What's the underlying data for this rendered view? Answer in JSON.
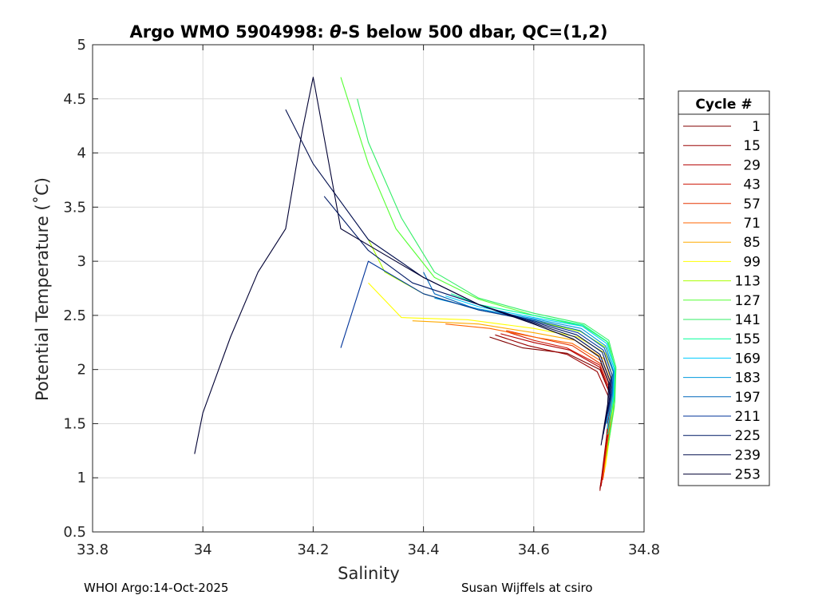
{
  "chart_data": {
    "type": "line",
    "title_prefix": "Argo WMO 5904998: ",
    "title_theta": "θ",
    "title_suffix": "-S below 500 dbar,  QC=(1,2)",
    "xlabel": "Salinity",
    "ylabel": "Potential Temperature (˚C)",
    "xlim": [
      33.8,
      34.8
    ],
    "ylim": [
      0.5,
      5
    ],
    "x_ticks": [
      33.8,
      34,
      34.2,
      34.4,
      34.6,
      34.8
    ],
    "x_tick_labels": [
      "33.8",
      "34",
      "34.2",
      "34.4",
      "34.6",
      "34.8"
    ],
    "y_ticks": [
      0.5,
      1,
      1.5,
      2,
      2.5,
      3,
      3.5,
      4,
      4.5,
      5
    ],
    "y_tick_labels": [
      "0.5",
      "1",
      "1.5",
      "2",
      "2.5",
      "3",
      "3.5",
      "4",
      "4.5",
      "5"
    ],
    "grid": true,
    "legend_title": "Cycle #",
    "legend_position": "right-outside",
    "series": [
      {
        "name": "1",
        "color": "#800000",
        "x": [
          34.72,
          34.735,
          34.74,
          34.72,
          34.66,
          34.58,
          34.52
        ],
        "y": [
          0.9,
          1.4,
          1.75,
          2.0,
          2.15,
          2.2,
          2.3
        ]
      },
      {
        "name": "15",
        "color": "#990000",
        "x": [
          34.72,
          34.732,
          34.738,
          34.715,
          34.66,
          34.59,
          34.53
        ],
        "y": [
          0.88,
          1.38,
          1.72,
          1.98,
          2.14,
          2.22,
          2.32
        ]
      },
      {
        "name": "29",
        "color": "#b30000",
        "x": [
          34.722,
          34.734,
          34.74,
          34.72,
          34.665,
          34.6,
          34.54
        ],
        "y": [
          0.92,
          1.4,
          1.76,
          2.02,
          2.18,
          2.25,
          2.33
        ]
      },
      {
        "name": "43",
        "color": "#cc1100",
        "x": [
          34.723,
          34.735,
          34.741,
          34.72,
          34.66,
          34.6,
          34.55
        ],
        "y": [
          0.95,
          1.42,
          1.78,
          2.04,
          2.2,
          2.27,
          2.35
        ]
      },
      {
        "name": "57",
        "color": "#e63300",
        "x": [
          34.725,
          34.737,
          34.742,
          34.722,
          34.67,
          34.61,
          34.55
        ],
        "y": [
          0.98,
          1.45,
          1.8,
          2.05,
          2.22,
          2.29,
          2.36
        ]
      },
      {
        "name": "71",
        "color": "#ff6600",
        "x": [
          34.726,
          34.738,
          34.743,
          34.725,
          34.67,
          34.6,
          34.52,
          34.44
        ],
        "y": [
          1.0,
          1.47,
          1.82,
          2.07,
          2.24,
          2.3,
          2.38,
          2.42
        ]
      },
      {
        "name": "85",
        "color": "#ffaa00",
        "x": [
          34.728,
          34.74,
          34.744,
          34.727,
          34.675,
          34.6,
          34.5,
          34.38
        ],
        "y": [
          1.05,
          1.5,
          1.85,
          2.1,
          2.27,
          2.34,
          2.42,
          2.45
        ]
      },
      {
        "name": "99",
        "color": "#ffff00",
        "x": [
          34.73,
          34.742,
          34.745,
          34.73,
          34.68,
          34.6,
          34.48,
          34.36,
          34.3
        ],
        "y": [
          1.1,
          1.55,
          1.9,
          2.15,
          2.3,
          2.38,
          2.46,
          2.48,
          2.8
        ]
      },
      {
        "name": "113",
        "color": "#aaff00",
        "x": [
          34.732,
          34.744,
          34.746,
          34.732,
          34.685,
          34.6,
          34.5,
          34.4,
          34.33,
          34.3
        ],
        "y": [
          1.2,
          1.6,
          1.95,
          2.2,
          2.35,
          2.45,
          2.55,
          2.7,
          2.9,
          3.2
        ]
      },
      {
        "name": "127",
        "color": "#55ff33",
        "x": [
          34.735,
          34.746,
          34.748,
          34.735,
          34.69,
          34.6,
          34.5,
          34.42,
          34.35,
          34.3,
          34.25
        ],
        "y": [
          1.3,
          1.65,
          2.0,
          2.25,
          2.4,
          2.5,
          2.65,
          2.85,
          3.3,
          3.9,
          4.7
        ]
      },
      {
        "name": "141",
        "color": "#33ee66",
        "x": [
          34.736,
          34.747,
          34.749,
          34.736,
          34.692,
          34.6,
          34.5,
          34.42,
          34.36,
          34.3,
          34.28
        ],
        "y": [
          1.35,
          1.7,
          2.02,
          2.27,
          2.42,
          2.52,
          2.66,
          2.9,
          3.4,
          4.1,
          4.5
        ]
      },
      {
        "name": "155",
        "color": "#00ff99",
        "x": [
          34.734,
          34.745,
          34.747,
          34.733,
          34.69,
          34.6,
          34.5,
          34.45
        ],
        "y": [
          1.4,
          1.72,
          2.02,
          2.26,
          2.41,
          2.5,
          2.6,
          2.7
        ]
      },
      {
        "name": "169",
        "color": "#00ccff",
        "x": [
          34.733,
          34.744,
          34.746,
          34.732,
          34.688,
          34.6,
          34.5,
          34.44
        ],
        "y": [
          1.45,
          1.74,
          2.0,
          2.24,
          2.4,
          2.48,
          2.58,
          2.68
        ]
      },
      {
        "name": "183",
        "color": "#0099dd",
        "x": [
          34.732,
          34.743,
          34.745,
          34.73,
          34.686,
          34.6,
          34.5,
          34.42
        ],
        "y": [
          1.5,
          1.76,
          1.98,
          2.22,
          2.38,
          2.47,
          2.56,
          2.66
        ]
      },
      {
        "name": "197",
        "color": "#0066bb",
        "x": [
          34.73,
          34.742,
          34.744,
          34.728,
          34.684,
          34.6,
          34.5,
          34.42,
          34.4
        ],
        "y": [
          1.5,
          1.78,
          1.98,
          2.2,
          2.36,
          2.46,
          2.55,
          2.7,
          2.9
        ]
      },
      {
        "name": "211",
        "color": "#003399",
        "x": [
          34.728,
          34.74,
          34.742,
          34.726,
          34.68,
          34.6,
          34.5,
          34.4,
          34.3,
          34.25
        ],
        "y": [
          1.45,
          1.75,
          1.95,
          2.18,
          2.34,
          2.45,
          2.55,
          2.7,
          3.0,
          2.2
        ]
      },
      {
        "name": "225",
        "color": "#001a66",
        "x": [
          34.726,
          34.738,
          34.74,
          34.724,
          34.678,
          34.6,
          34.5,
          34.38,
          34.3,
          34.22
        ],
        "y": [
          1.4,
          1.72,
          1.93,
          2.16,
          2.32,
          2.44,
          2.6,
          2.8,
          3.1,
          3.6
        ]
      },
      {
        "name": "239",
        "color": "#000d4d",
        "x": [
          34.724,
          34.736,
          34.738,
          34.72,
          34.675,
          34.6,
          34.5,
          34.4,
          34.3,
          34.2,
          34.15
        ],
        "y": [
          1.35,
          1.7,
          1.9,
          2.14,
          2.3,
          2.43,
          2.6,
          2.85,
          3.2,
          3.9,
          4.4
        ]
      },
      {
        "name": "253",
        "color": "#000033",
        "x": [
          34.722,
          34.734,
          34.736,
          34.718,
          34.672,
          34.6,
          34.5,
          34.4,
          34.3,
          34.25,
          34.2,
          34.18,
          34.15,
          34.1,
          34.05,
          34.0,
          33.985
        ],
        "y": [
          1.3,
          1.68,
          1.88,
          2.12,
          2.28,
          2.42,
          2.6,
          2.85,
          3.15,
          3.3,
          4.7,
          4.2,
          3.3,
          2.9,
          2.3,
          1.6,
          1.22
        ]
      }
    ]
  },
  "footer": {
    "left": "WHOI Argo:14-Oct-2025",
    "right": "Susan Wijffels at csiro"
  }
}
